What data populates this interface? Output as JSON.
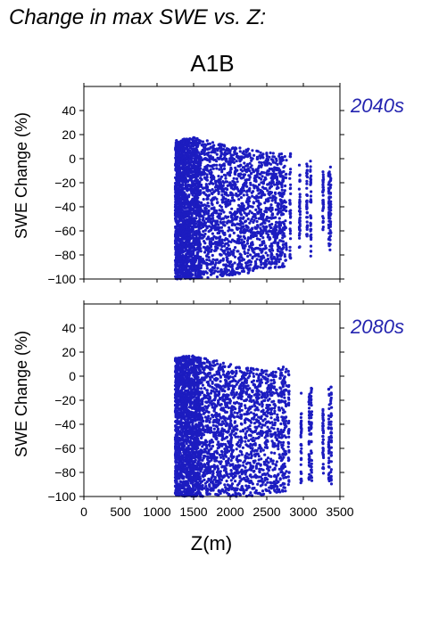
{
  "figure": {
    "title": "Change in max SWE vs. Z:",
    "scenario": "A1B",
    "xlabel": "Z(m)",
    "ylabel": "SWE Change (%)"
  },
  "colors": {
    "points": "#1c1cc0",
    "period_label": "#2424b0",
    "axis": "#000000"
  },
  "chart_data": [
    {
      "type": "scatter",
      "period": "2040s",
      "xlabel": "Z(m)",
      "ylabel": "SWE Change (%)",
      "xlim": [
        0,
        3500
      ],
      "ylim": [
        -100,
        60
      ],
      "xticks": [
        0,
        500,
        1000,
        1500,
        2000,
        2500,
        3000,
        3500
      ],
      "yticks": [
        -100,
        -80,
        -60,
        -40,
        -20,
        0,
        20,
        40
      ],
      "show_x_tick_labels": false,
      "grid": false,
      "envelope": [
        {
          "x": 1250,
          "ymin": -100,
          "ymax": 15
        },
        {
          "x": 1500,
          "ymin": -100,
          "ymax": 18
        },
        {
          "x": 1750,
          "ymin": -99,
          "ymax": 14
        },
        {
          "x": 2000,
          "ymin": -97,
          "ymax": 10
        },
        {
          "x": 2250,
          "ymin": -95,
          "ymax": 8
        },
        {
          "x": 2500,
          "ymin": -92,
          "ymax": 5
        },
        {
          "x": 2750,
          "ymin": -90,
          "ymax": 5
        },
        {
          "x": 3000,
          "ymin": -85,
          "ymax": 0
        },
        {
          "x": 3100,
          "ymin": -82,
          "ymax": -2
        },
        {
          "x": 3350,
          "ymin": -80,
          "ymax": -5
        }
      ],
      "columns": [
        {
          "x": 2820,
          "ymin": -85,
          "ymax": 5
        },
        {
          "x": 2950,
          "ymin": -75,
          "ymax": -2
        },
        {
          "x": 3050,
          "ymin": -68,
          "ymax": -3
        },
        {
          "x": 3100,
          "ymin": -82,
          "ymax": -2
        },
        {
          "x": 3270,
          "ymin": -60,
          "ymax": -8
        },
        {
          "x": 3350,
          "ymin": -75,
          "ymax": -10
        },
        {
          "x": 3370,
          "ymin": -78,
          "ymax": -6
        }
      ]
    },
    {
      "type": "scatter",
      "period": "2080s",
      "xlabel": "Z(m)",
      "ylabel": "SWE Change (%)",
      "xlim": [
        0,
        3500
      ],
      "ylim": [
        -100,
        60
      ],
      "xticks": [
        0,
        500,
        1000,
        1500,
        2000,
        2500,
        3000,
        3500
      ],
      "yticks": [
        -100,
        -80,
        -60,
        -40,
        -20,
        0,
        20,
        40
      ],
      "show_x_tick_labels": true,
      "grid": false,
      "envelope": [
        {
          "x": 1250,
          "ymin": -100,
          "ymax": 16
        },
        {
          "x": 1500,
          "ymin": -100,
          "ymax": 17
        },
        {
          "x": 1750,
          "ymin": -100,
          "ymax": 14
        },
        {
          "x": 2000,
          "ymin": -100,
          "ymax": 10
        },
        {
          "x": 2250,
          "ymin": -100,
          "ymax": 8
        },
        {
          "x": 2500,
          "ymin": -98,
          "ymax": 5
        },
        {
          "x": 2750,
          "ymin": -96,
          "ymax": 8
        },
        {
          "x": 3000,
          "ymin": -92,
          "ymax": -8
        },
        {
          "x": 3100,
          "ymin": -90,
          "ymax": -10
        },
        {
          "x": 3350,
          "ymin": -90,
          "ymax": -8
        }
      ],
      "columns": [
        {
          "x": 2800,
          "ymin": -92,
          "ymax": 8
        },
        {
          "x": 2970,
          "ymin": -90,
          "ymax": -10
        },
        {
          "x": 3080,
          "ymin": -88,
          "ymax": -12
        },
        {
          "x": 3110,
          "ymin": -90,
          "ymax": -10
        },
        {
          "x": 3270,
          "ymin": -85,
          "ymax": -25
        },
        {
          "x": 3350,
          "ymin": -90,
          "ymax": -10
        },
        {
          "x": 3380,
          "ymin": -90,
          "ymax": -8
        }
      ]
    }
  ]
}
